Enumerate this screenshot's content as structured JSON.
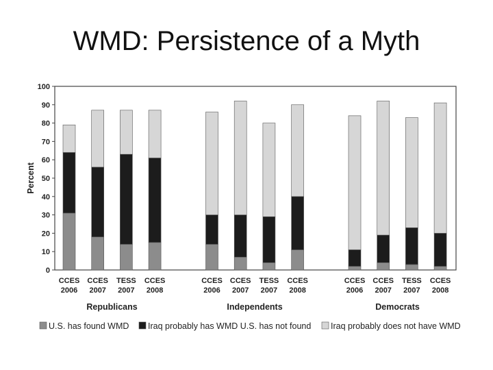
{
  "slide": {
    "title": "WMD: Persistence of a Myth"
  },
  "chart_data": {
    "type": "bar",
    "stacked": true,
    "ylabel": "Percent",
    "ylim": [
      0,
      100
    ],
    "yticks": [
      0,
      10,
      20,
      30,
      40,
      50,
      60,
      70,
      80,
      90,
      100
    ],
    "groups": [
      {
        "name": "Republicans",
        "categories": [
          {
            "line1": "CCES",
            "line2": "2006",
            "values": [
              31,
              33,
              15
            ]
          },
          {
            "line1": "CCES",
            "line2": "2007",
            "values": [
              18,
              38,
              31
            ]
          },
          {
            "line1": "TESS",
            "line2": "2007",
            "values": [
              14,
              49,
              24
            ]
          },
          {
            "line1": "CCES",
            "line2": "2008",
            "values": [
              15,
              46,
              26
            ]
          }
        ]
      },
      {
        "name": "Independents",
        "categories": [
          {
            "line1": "CCES",
            "line2": "2006",
            "values": [
              14,
              16,
              56
            ]
          },
          {
            "line1": "CCES",
            "line2": "2007",
            "values": [
              7,
              23,
              62
            ]
          },
          {
            "line1": "TESS",
            "line2": "2007",
            "values": [
              4,
              25,
              51
            ]
          },
          {
            "line1": "CCES",
            "line2": "2008",
            "values": [
              11,
              29,
              50
            ]
          }
        ]
      },
      {
        "name": "Democrats",
        "categories": [
          {
            "line1": "CCES",
            "line2": "2006",
            "values": [
              2,
              9,
              73
            ]
          },
          {
            "line1": "CCES",
            "line2": "2007",
            "values": [
              4,
              15,
              73
            ]
          },
          {
            "line1": "TESS",
            "line2": "2007",
            "values": [
              3,
              20,
              60
            ]
          },
          {
            "line1": "CCES",
            "line2": "2008",
            "values": [
              2,
              18,
              71
            ]
          }
        ]
      }
    ],
    "series": [
      {
        "name": "U.S. has found WMD",
        "color": "#8c8c8c"
      },
      {
        "name": "Iraq probably has WMD U.S. has not found",
        "color": "#1c1c1c"
      },
      {
        "name": "Iraq probably does not have WMD",
        "color": "#d6d6d6"
      }
    ]
  }
}
